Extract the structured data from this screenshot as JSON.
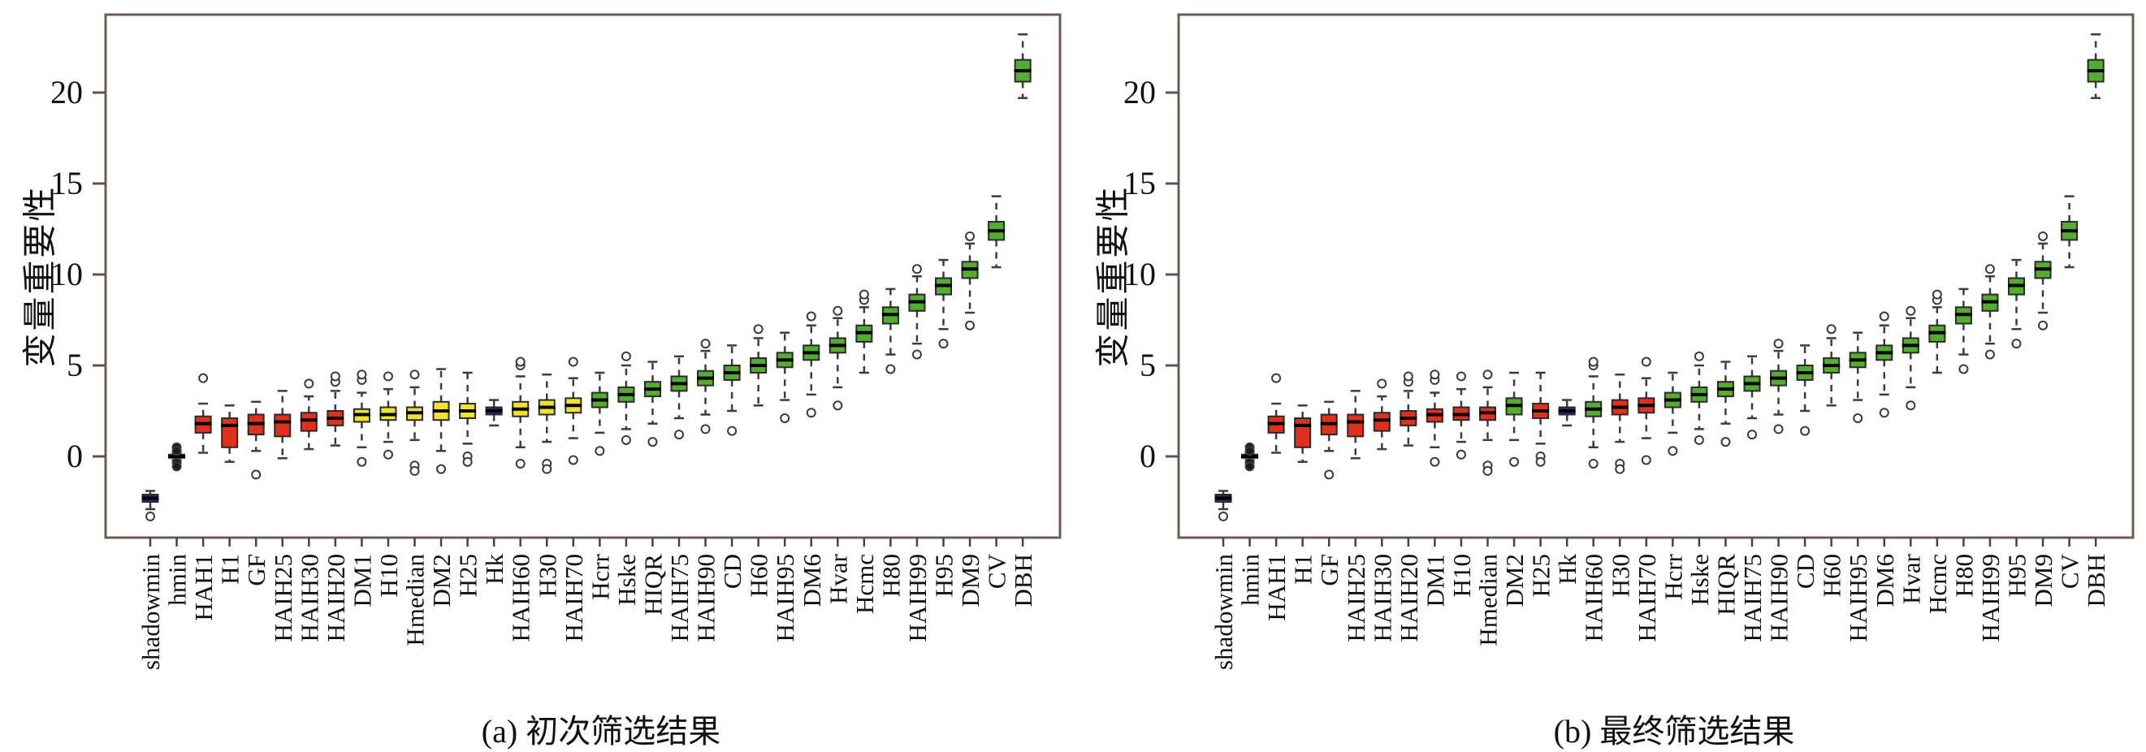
{
  "figure": {
    "ylabel": "变量重要性",
    "captions": {
      "a": "(a) 初次筛选结果",
      "b": "(b) 最终筛选结果"
    }
  },
  "colors": {
    "rejected": "#e1301d",
    "tentative": "#efe32b",
    "confirmed": "#55ad30",
    "shadow": "#252c6b",
    "dark": "#1a1a22",
    "frame": "#6e5c52",
    "whisker": "#3c3c3c",
    "median": "#000000",
    "box_border": "#2a2a2a",
    "flier_stroke": "#3a3a3a",
    "tick": "#555555",
    "text": "#111111"
  },
  "chart_data": [
    {
      "type": "box",
      "title": "(a) 初次筛选结果",
      "ylabel": "变量重要性",
      "xlabel": "",
      "ylim": [
        -4.5,
        24.3
      ],
      "yticks": [
        0,
        5,
        10,
        15,
        20
      ],
      "grid": false,
      "legend": null,
      "boxes": [
        {
          "label": "shadowmin",
          "status": "shadow",
          "whislo": -2.9,
          "q1": -2.5,
          "med": -2.3,
          "q3": -2.1,
          "whishi": -1.9,
          "fliers": [
            -3.3
          ]
        },
        {
          "label": "hmin",
          "status": "dark",
          "whislo": -0.2,
          "q1": -0.08,
          "med": 0.0,
          "q3": 0.1,
          "whishi": 0.2,
          "fliers": [
            0.5,
            0.3,
            -0.35,
            -0.55
          ],
          "solid_fliers": true
        },
        {
          "label": "HAH1",
          "status": "rejected",
          "whislo": 0.2,
          "q1": 1.3,
          "med": 1.8,
          "q3": 2.2,
          "whishi": 2.9,
          "fliers": [
            4.3
          ]
        },
        {
          "label": "H1",
          "status": "rejected",
          "whislo": -0.3,
          "q1": 0.5,
          "med": 1.7,
          "q3": 2.1,
          "whishi": 2.8,
          "fliers": []
        },
        {
          "label": "GF",
          "status": "rejected",
          "whislo": 0.3,
          "q1": 1.2,
          "med": 1.8,
          "q3": 2.3,
          "whishi": 3.0,
          "fliers": [
            -1.0
          ]
        },
        {
          "label": "HAIH25",
          "status": "rejected",
          "whislo": -0.1,
          "q1": 1.1,
          "med": 1.9,
          "q3": 2.3,
          "whishi": 3.6,
          "fliers": []
        },
        {
          "label": "HAIH30",
          "status": "rejected",
          "whislo": 0.4,
          "q1": 1.4,
          "med": 2.0,
          "q3": 2.4,
          "whishi": 3.3,
          "fliers": [
            4.0
          ]
        },
        {
          "label": "HAIH20",
          "status": "rejected",
          "whislo": 0.6,
          "q1": 1.7,
          "med": 2.1,
          "q3": 2.5,
          "whishi": 3.6,
          "fliers": [
            4.1,
            4.4
          ]
        },
        {
          "label": "DM1",
          "status": "tentative",
          "whislo": 0.5,
          "q1": 1.9,
          "med": 2.3,
          "q3": 2.6,
          "whishi": 3.5,
          "fliers": [
            4.2,
            4.5,
            -0.3
          ]
        },
        {
          "label": "H10",
          "status": "tentative",
          "whislo": 0.8,
          "q1": 2.0,
          "med": 2.3,
          "q3": 2.7,
          "whishi": 3.7,
          "fliers": [
            4.4,
            0.1
          ]
        },
        {
          "label": "Hmedian",
          "status": "tentative",
          "whislo": 0.9,
          "q1": 2.0,
          "med": 2.4,
          "q3": 2.7,
          "whishi": 3.8,
          "fliers": [
            4.5,
            -0.5,
            -0.8
          ]
        },
        {
          "label": "DM2",
          "status": "tentative",
          "whislo": 0.3,
          "q1": 2.0,
          "med": 2.5,
          "q3": 3.0,
          "whishi": 4.8,
          "fliers": [
            -0.7
          ]
        },
        {
          "label": "H25",
          "status": "tentative",
          "whislo": 0.7,
          "q1": 2.1,
          "med": 2.5,
          "q3": 2.9,
          "whishi": 4.6,
          "fliers": [
            0.0,
            -0.3
          ]
        },
        {
          "label": "Hk",
          "status": "shadow",
          "whislo": 1.7,
          "q1": 2.3,
          "med": 2.5,
          "q3": 2.7,
          "whishi": 3.1,
          "fliers": []
        },
        {
          "label": "HAIH60",
          "status": "tentative",
          "whislo": 0.5,
          "q1": 2.2,
          "med": 2.6,
          "q3": 3.0,
          "whishi": 4.4,
          "fliers": [
            5.0,
            5.2,
            -0.4
          ]
        },
        {
          "label": "H30",
          "status": "tentative",
          "whislo": 0.8,
          "q1": 2.3,
          "med": 2.7,
          "q3": 3.1,
          "whishi": 4.5,
          "fliers": [
            -0.4,
            -0.7
          ]
        },
        {
          "label": "HAIH70",
          "status": "tentative",
          "whislo": 1.0,
          "q1": 2.4,
          "med": 2.8,
          "q3": 3.2,
          "whishi": 4.3,
          "fliers": [
            5.2,
            -0.2
          ]
        },
        {
          "label": "Hcrr",
          "status": "confirmed",
          "whislo": 1.3,
          "q1": 2.7,
          "med": 3.1,
          "q3": 3.5,
          "whishi": 4.6,
          "fliers": [
            0.3
          ]
        },
        {
          "label": "Hske",
          "status": "confirmed",
          "whislo": 1.5,
          "q1": 3.0,
          "med": 3.4,
          "q3": 3.8,
          "whishi": 5.0,
          "fliers": [
            5.5,
            0.9
          ]
        },
        {
          "label": "HIQR",
          "status": "confirmed",
          "whislo": 1.8,
          "q1": 3.3,
          "med": 3.7,
          "q3": 4.1,
          "whishi": 5.2,
          "fliers": [
            0.8
          ]
        },
        {
          "label": "HAIH75",
          "status": "confirmed",
          "whislo": 2.1,
          "q1": 3.6,
          "med": 4.0,
          "q3": 4.4,
          "whishi": 5.5,
          "fliers": [
            1.2
          ]
        },
        {
          "label": "HAIH90",
          "status": "confirmed",
          "whislo": 2.3,
          "q1": 3.9,
          "med": 4.3,
          "q3": 4.7,
          "whishi": 5.8,
          "fliers": [
            6.2,
            1.5
          ]
        },
        {
          "label": "CD",
          "status": "confirmed",
          "whislo": 2.5,
          "q1": 4.2,
          "med": 4.6,
          "q3": 5.0,
          "whishi": 6.1,
          "fliers": [
            1.4
          ]
        },
        {
          "label": "H60",
          "status": "confirmed",
          "whislo": 2.8,
          "q1": 4.6,
          "med": 5.0,
          "q3": 5.4,
          "whishi": 6.5,
          "fliers": [
            7.0
          ]
        },
        {
          "label": "HAIH95",
          "status": "confirmed",
          "whislo": 3.1,
          "q1": 4.9,
          "med": 5.3,
          "q3": 5.7,
          "whishi": 6.8,
          "fliers": [
            2.1
          ]
        },
        {
          "label": "DM6",
          "status": "confirmed",
          "whislo": 3.4,
          "q1": 5.3,
          "med": 5.7,
          "q3": 6.1,
          "whishi": 7.2,
          "fliers": [
            7.7,
            2.4
          ]
        },
        {
          "label": "Hvar",
          "status": "confirmed",
          "whislo": 3.8,
          "q1": 5.7,
          "med": 6.1,
          "q3": 6.5,
          "whishi": 7.6,
          "fliers": [
            8.0,
            2.8
          ]
        },
        {
          "label": "Hcmc",
          "status": "confirmed",
          "whislo": 4.6,
          "q1": 6.3,
          "med": 6.8,
          "q3": 7.2,
          "whishi": 8.2,
          "fliers": [
            8.6,
            8.9
          ]
        },
        {
          "label": "H80",
          "status": "confirmed",
          "whislo": 5.6,
          "q1": 7.3,
          "med": 7.8,
          "q3": 8.2,
          "whishi": 9.2,
          "fliers": [
            4.8
          ]
        },
        {
          "label": "HAIH99",
          "status": "confirmed",
          "whislo": 6.2,
          "q1": 8.0,
          "med": 8.5,
          "q3": 8.9,
          "whishi": 9.9,
          "fliers": [
            10.3,
            5.6
          ]
        },
        {
          "label": "H95",
          "status": "confirmed",
          "whislo": 7.0,
          "q1": 8.9,
          "med": 9.4,
          "q3": 9.8,
          "whishi": 10.8,
          "fliers": [
            6.2
          ]
        },
        {
          "label": "DM9",
          "status": "confirmed",
          "whislo": 7.9,
          "q1": 9.8,
          "med": 10.3,
          "q3": 10.7,
          "whishi": 11.7,
          "fliers": [
            12.1,
            7.2
          ]
        },
        {
          "label": "CV",
          "status": "confirmed",
          "whislo": 10.4,
          "q1": 11.9,
          "med": 12.4,
          "q3": 12.9,
          "whishi": 14.3,
          "fliers": []
        },
        {
          "label": "DBH",
          "status": "confirmed",
          "whislo": 19.7,
          "q1": 20.6,
          "med": 21.2,
          "q3": 21.8,
          "whishi": 23.2,
          "fliers": []
        }
      ]
    },
    {
      "type": "box",
      "title": "(b) 最终筛选结果",
      "ylabel": "变量重要性",
      "xlabel": "",
      "ylim": [
        -4.5,
        24.3
      ],
      "yticks": [
        0,
        5,
        10,
        15,
        20
      ],
      "grid": false,
      "legend": null,
      "boxes": [
        {
          "label": "shadowmin",
          "status": "shadow",
          "whislo": -2.9,
          "q1": -2.5,
          "med": -2.3,
          "q3": -2.1,
          "whishi": -1.9,
          "fliers": [
            -3.3
          ]
        },
        {
          "label": "hmin",
          "status": "dark",
          "whislo": -0.2,
          "q1": -0.08,
          "med": 0.0,
          "q3": 0.1,
          "whishi": 0.2,
          "fliers": [
            0.5,
            0.3,
            -0.35,
            -0.55
          ],
          "solid_fliers": true
        },
        {
          "label": "HAH1",
          "status": "rejected",
          "whislo": 0.2,
          "q1": 1.3,
          "med": 1.8,
          "q3": 2.2,
          "whishi": 2.9,
          "fliers": [
            4.3
          ]
        },
        {
          "label": "H1",
          "status": "rejected",
          "whislo": -0.3,
          "q1": 0.5,
          "med": 1.7,
          "q3": 2.1,
          "whishi": 2.8,
          "fliers": []
        },
        {
          "label": "GF",
          "status": "rejected",
          "whislo": 0.3,
          "q1": 1.2,
          "med": 1.8,
          "q3": 2.3,
          "whishi": 3.0,
          "fliers": [
            -1.0
          ]
        },
        {
          "label": "HAIH25",
          "status": "rejected",
          "whislo": -0.1,
          "q1": 1.1,
          "med": 1.9,
          "q3": 2.3,
          "whishi": 3.6,
          "fliers": []
        },
        {
          "label": "HAIH30",
          "status": "rejected",
          "whislo": 0.4,
          "q1": 1.4,
          "med": 2.0,
          "q3": 2.4,
          "whishi": 3.3,
          "fliers": [
            4.0
          ]
        },
        {
          "label": "HAIH20",
          "status": "rejected",
          "whislo": 0.6,
          "q1": 1.7,
          "med": 2.1,
          "q3": 2.5,
          "whishi": 3.6,
          "fliers": [
            4.1,
            4.4
          ]
        },
        {
          "label": "DM1",
          "status": "rejected",
          "whislo": 0.5,
          "q1": 1.9,
          "med": 2.3,
          "q3": 2.6,
          "whishi": 3.5,
          "fliers": [
            4.2,
            4.5,
            -0.3
          ]
        },
        {
          "label": "H10",
          "status": "rejected",
          "whislo": 0.8,
          "q1": 2.0,
          "med": 2.3,
          "q3": 2.7,
          "whishi": 3.7,
          "fliers": [
            4.4,
            0.1
          ]
        },
        {
          "label": "Hmedian",
          "status": "rejected",
          "whislo": 0.9,
          "q1": 2.0,
          "med": 2.4,
          "q3": 2.7,
          "whishi": 3.8,
          "fliers": [
            4.5,
            -0.5,
            -0.8
          ]
        },
        {
          "label": "DM2",
          "status": "confirmed",
          "whislo": 0.9,
          "q1": 2.3,
          "med": 2.8,
          "q3": 3.2,
          "whishi": 4.6,
          "fliers": [
            -0.3
          ]
        },
        {
          "label": "H25",
          "status": "rejected",
          "whislo": 0.7,
          "q1": 2.1,
          "med": 2.5,
          "q3": 2.9,
          "whishi": 4.6,
          "fliers": [
            0.0,
            -0.3
          ]
        },
        {
          "label": "Hk",
          "status": "shadow",
          "whislo": 1.7,
          "q1": 2.3,
          "med": 2.5,
          "q3": 2.7,
          "whishi": 3.1,
          "fliers": []
        },
        {
          "label": "HAIH60",
          "status": "confirmed",
          "whislo": 0.5,
          "q1": 2.2,
          "med": 2.6,
          "q3": 3.0,
          "whishi": 4.4,
          "fliers": [
            5.0,
            5.2,
            -0.4
          ]
        },
        {
          "label": "H30",
          "status": "rejected",
          "whislo": 0.8,
          "q1": 2.3,
          "med": 2.7,
          "q3": 3.1,
          "whishi": 4.5,
          "fliers": [
            -0.4,
            -0.7
          ]
        },
        {
          "label": "HAIH70",
          "status": "rejected",
          "whislo": 1.0,
          "q1": 2.4,
          "med": 2.8,
          "q3": 3.2,
          "whishi": 4.3,
          "fliers": [
            5.2,
            -0.2
          ]
        },
        {
          "label": "Hcrr",
          "status": "confirmed",
          "whislo": 1.3,
          "q1": 2.7,
          "med": 3.1,
          "q3": 3.5,
          "whishi": 4.6,
          "fliers": [
            0.3
          ]
        },
        {
          "label": "Hske",
          "status": "confirmed",
          "whislo": 1.5,
          "q1": 3.0,
          "med": 3.4,
          "q3": 3.8,
          "whishi": 5.0,
          "fliers": [
            5.5,
            0.9
          ]
        },
        {
          "label": "HIQR",
          "status": "confirmed",
          "whislo": 1.8,
          "q1": 3.3,
          "med": 3.7,
          "q3": 4.1,
          "whishi": 5.2,
          "fliers": [
            0.8
          ]
        },
        {
          "label": "HAIH75",
          "status": "confirmed",
          "whislo": 2.1,
          "q1": 3.6,
          "med": 4.0,
          "q3": 4.4,
          "whishi": 5.5,
          "fliers": [
            1.2
          ]
        },
        {
          "label": "HAIH90",
          "status": "confirmed",
          "whislo": 2.3,
          "q1": 3.9,
          "med": 4.3,
          "q3": 4.7,
          "whishi": 5.8,
          "fliers": [
            6.2,
            1.5
          ]
        },
        {
          "label": "CD",
          "status": "confirmed",
          "whislo": 2.5,
          "q1": 4.2,
          "med": 4.6,
          "q3": 5.0,
          "whishi": 6.1,
          "fliers": [
            1.4
          ]
        },
        {
          "label": "H60",
          "status": "confirmed",
          "whislo": 2.8,
          "q1": 4.6,
          "med": 5.0,
          "q3": 5.4,
          "whishi": 6.5,
          "fliers": [
            7.0
          ]
        },
        {
          "label": "HAIH95",
          "status": "confirmed",
          "whislo": 3.1,
          "q1": 4.9,
          "med": 5.3,
          "q3": 5.7,
          "whishi": 6.8,
          "fliers": [
            2.1
          ]
        },
        {
          "label": "DM6",
          "status": "confirmed",
          "whislo": 3.4,
          "q1": 5.3,
          "med": 5.7,
          "q3": 6.1,
          "whishi": 7.2,
          "fliers": [
            7.7,
            2.4
          ]
        },
        {
          "label": "Hvar",
          "status": "confirmed",
          "whislo": 3.8,
          "q1": 5.7,
          "med": 6.1,
          "q3": 6.5,
          "whishi": 7.6,
          "fliers": [
            8.0,
            2.8
          ]
        },
        {
          "label": "Hcmc",
          "status": "confirmed",
          "whislo": 4.6,
          "q1": 6.3,
          "med": 6.8,
          "q3": 7.2,
          "whishi": 8.2,
          "fliers": [
            8.6,
            8.9
          ]
        },
        {
          "label": "H80",
          "status": "confirmed",
          "whislo": 5.6,
          "q1": 7.3,
          "med": 7.8,
          "q3": 8.2,
          "whishi": 9.2,
          "fliers": [
            4.8
          ]
        },
        {
          "label": "HAIH99",
          "status": "confirmed",
          "whislo": 6.2,
          "q1": 8.0,
          "med": 8.5,
          "q3": 8.9,
          "whishi": 9.9,
          "fliers": [
            10.3,
            5.6
          ]
        },
        {
          "label": "H95",
          "status": "confirmed",
          "whislo": 7.0,
          "q1": 8.9,
          "med": 9.4,
          "q3": 9.8,
          "whishi": 10.8,
          "fliers": [
            6.2
          ]
        },
        {
          "label": "DM9",
          "status": "confirmed",
          "whislo": 7.9,
          "q1": 9.8,
          "med": 10.3,
          "q3": 10.7,
          "whishi": 11.7,
          "fliers": [
            12.1,
            7.2
          ]
        },
        {
          "label": "CV",
          "status": "confirmed",
          "whislo": 10.4,
          "q1": 11.9,
          "med": 12.4,
          "q3": 12.9,
          "whishi": 14.3,
          "fliers": []
        },
        {
          "label": "DBH",
          "status": "confirmed",
          "whislo": 19.7,
          "q1": 20.6,
          "med": 21.2,
          "q3": 21.8,
          "whishi": 23.2,
          "fliers": []
        }
      ]
    }
  ]
}
